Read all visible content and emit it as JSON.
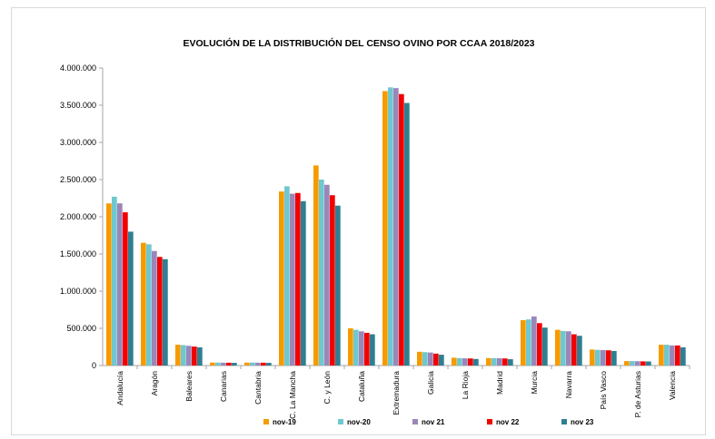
{
  "chart_data": {
    "type": "bar",
    "title": "EVOLUCIÓN DE LA DISTRIBUCIÓN DEL CENSO OVINO POR CCAA 2018/2023",
    "xlabel": "",
    "ylabel": "",
    "ylim": [
      0,
      4000000
    ],
    "yticks": [
      "0",
      "500.000",
      "1.000.000",
      "1.500.000",
      "2.000.000",
      "2.500.000",
      "3.000.000",
      "3.500.000",
      "4.000.000"
    ],
    "grid": false,
    "legend_position": "bottom",
    "categories": [
      "Andalucía",
      "Aragón",
      "Baleares",
      "Canarias",
      "Cantabria",
      "C. La Mancha",
      "C. y León",
      "Cataluña",
      "Extremadura",
      "Galicia",
      "La Rioja",
      "Madrid",
      "Murcia",
      "Navarra",
      "País Vasco",
      "P. de Asturias",
      "Valencia"
    ],
    "series": [
      {
        "name": "nov-19",
        "color": "#F59B00",
        "values": [
          2180000,
          1650000,
          280000,
          40000,
          40000,
          2340000,
          2690000,
          500000,
          3690000,
          185000,
          105000,
          100000,
          610000,
          480000,
          215000,
          60000,
          280000
        ]
      },
      {
        "name": "nov-20",
        "color": "#6FC7CF",
        "values": [
          2270000,
          1630000,
          275000,
          40000,
          40000,
          2410000,
          2500000,
          480000,
          3740000,
          180000,
          100000,
          100000,
          620000,
          465000,
          210000,
          60000,
          280000
        ]
      },
      {
        "name": "nov 21",
        "color": "#9B86BA",
        "values": [
          2180000,
          1540000,
          265000,
          38000,
          38000,
          2310000,
          2430000,
          460000,
          3730000,
          175000,
          97000,
          98000,
          660000,
          460000,
          208000,
          58000,
          270000
        ]
      },
      {
        "name": "nov 22",
        "color": "#F20000",
        "values": [
          2060000,
          1460000,
          255000,
          38000,
          38000,
          2320000,
          2290000,
          440000,
          3650000,
          160000,
          95000,
          95000,
          570000,
          420000,
          205000,
          56000,
          270000
        ]
      },
      {
        "name": "nov 23",
        "color": "#2E7F92",
        "values": [
          1800000,
          1430000,
          245000,
          36000,
          36000,
          2210000,
          2150000,
          420000,
          3530000,
          145000,
          88000,
          85000,
          510000,
          400000,
          195000,
          55000,
          245000
        ]
      }
    ]
  }
}
